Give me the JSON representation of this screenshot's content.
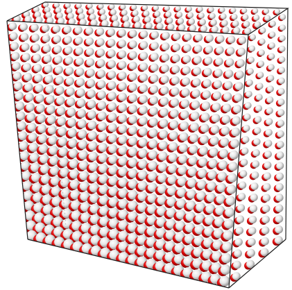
{
  "scene": {
    "subject": "atom-lattice-cube",
    "colors": {
      "background": "#ffffff",
      "outline": "#1a1a1a",
      "atom_red": "#d40000",
      "atom_red_dark": "#8a0000",
      "atom_white": "#f2f2f2",
      "atom_white_shadow": "#9a9a9a"
    },
    "lattice": {
      "front_columns": 22,
      "front_rows": 22,
      "depth_layers": 22
    }
  }
}
